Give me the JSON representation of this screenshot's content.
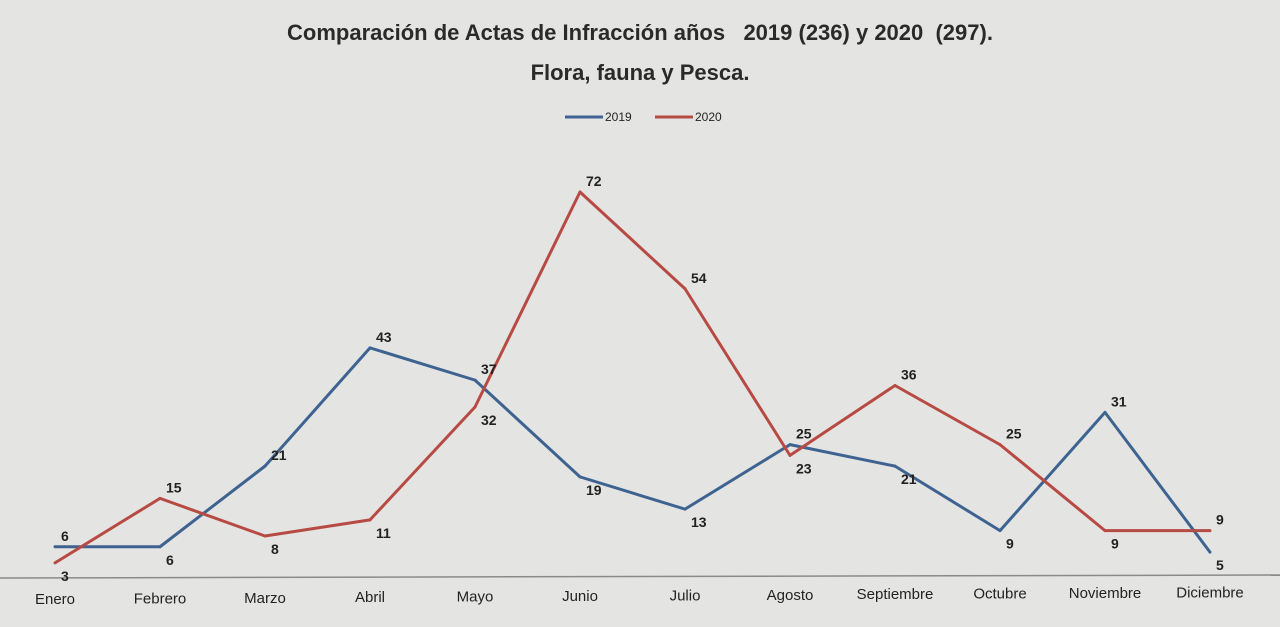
{
  "chart_data": {
    "type": "line",
    "title": "Comparación de Actas de Infracción años   2019 (236) y 2020  (297).",
    "subtitle": "Flora, fauna y Pesca.",
    "categories": [
      "Enero",
      "Febrero",
      "Marzo",
      "Abril",
      "Mayo",
      "Junio",
      "Julio",
      "Agosto",
      "Septiembre",
      "Octubre",
      "Noviembre",
      "Diciembre"
    ],
    "series": [
      {
        "name": "2019",
        "color": "#3f6390",
        "values": [
          6,
          6,
          21,
          43,
          37,
          19,
          13,
          25,
          21,
          9,
          31,
          5
        ]
      },
      {
        "name": "2020",
        "color": "#b84a44",
        "values": [
          3,
          15,
          8,
          11,
          32,
          72,
          54,
          23,
          36,
          25,
          9,
          9
        ]
      }
    ],
    "xlabel": "",
    "ylabel": "",
    "ylim": [
      0,
      72
    ],
    "grid": false,
    "legend": "top-center",
    "data_labels": true
  }
}
